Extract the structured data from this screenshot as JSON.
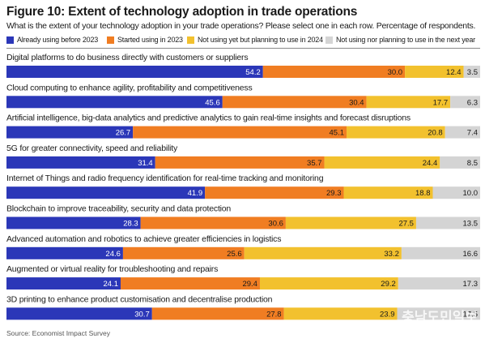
{
  "title": "Figure 10: Extent of technology adoption in trade operations",
  "subtitle": "What is the extent of your technology adoption in your trade operations? Please select one in each row. Percentage of respondents.",
  "source": "Source: Economist Impact Survey",
  "watermark": "충남도민일보",
  "chart_data": {
    "type": "bar",
    "orientation": "horizontal",
    "stacked": true,
    "unit": "%",
    "legend_placement": "top",
    "categories": [
      "Digital platforms to do business directly with customers or suppliers",
      "Cloud computing to enhance agility, profitability and competitiveness",
      "Artificial intelligence, big-data analytics and predictive analytics to gain real-time insights and forecast disruptions",
      "5G for greater connectivity, speed and reliability",
      "Internet of Things and radio frequency identification for real-time tracking and monitoring",
      "Blockchain to improve traceability, security and data protection",
      "Advanced automation and robotics to achieve greater efficiencies in logistics",
      "Augmented or virtual reality for troubleshooting and repairs",
      "3D printing to enhance product customisation and decentralise production"
    ],
    "series": [
      {
        "name": "Already using before 2023",
        "color": "#2b37b8",
        "values": [
          54.2,
          45.6,
          26.7,
          31.4,
          41.9,
          28.3,
          24.6,
          24.1,
          30.7
        ]
      },
      {
        "name": "Started using in 2023",
        "color": "#f07d22",
        "values": [
          30.0,
          30.4,
          45.1,
          35.7,
          29.3,
          30.6,
          25.6,
          29.4,
          27.8
        ]
      },
      {
        "name": "Not using yet but planning to use in 2024",
        "color": "#f2c12e",
        "values": [
          12.4,
          17.7,
          20.8,
          24.4,
          18.8,
          27.5,
          33.2,
          29.2,
          23.9
        ]
      },
      {
        "name": "Not using nor planning to use in the next year",
        "color": "#d4d4d4",
        "values": [
          3.5,
          6.3,
          7.4,
          8.5,
          10.0,
          13.5,
          16.6,
          17.3,
          17.5
        ]
      }
    ]
  }
}
